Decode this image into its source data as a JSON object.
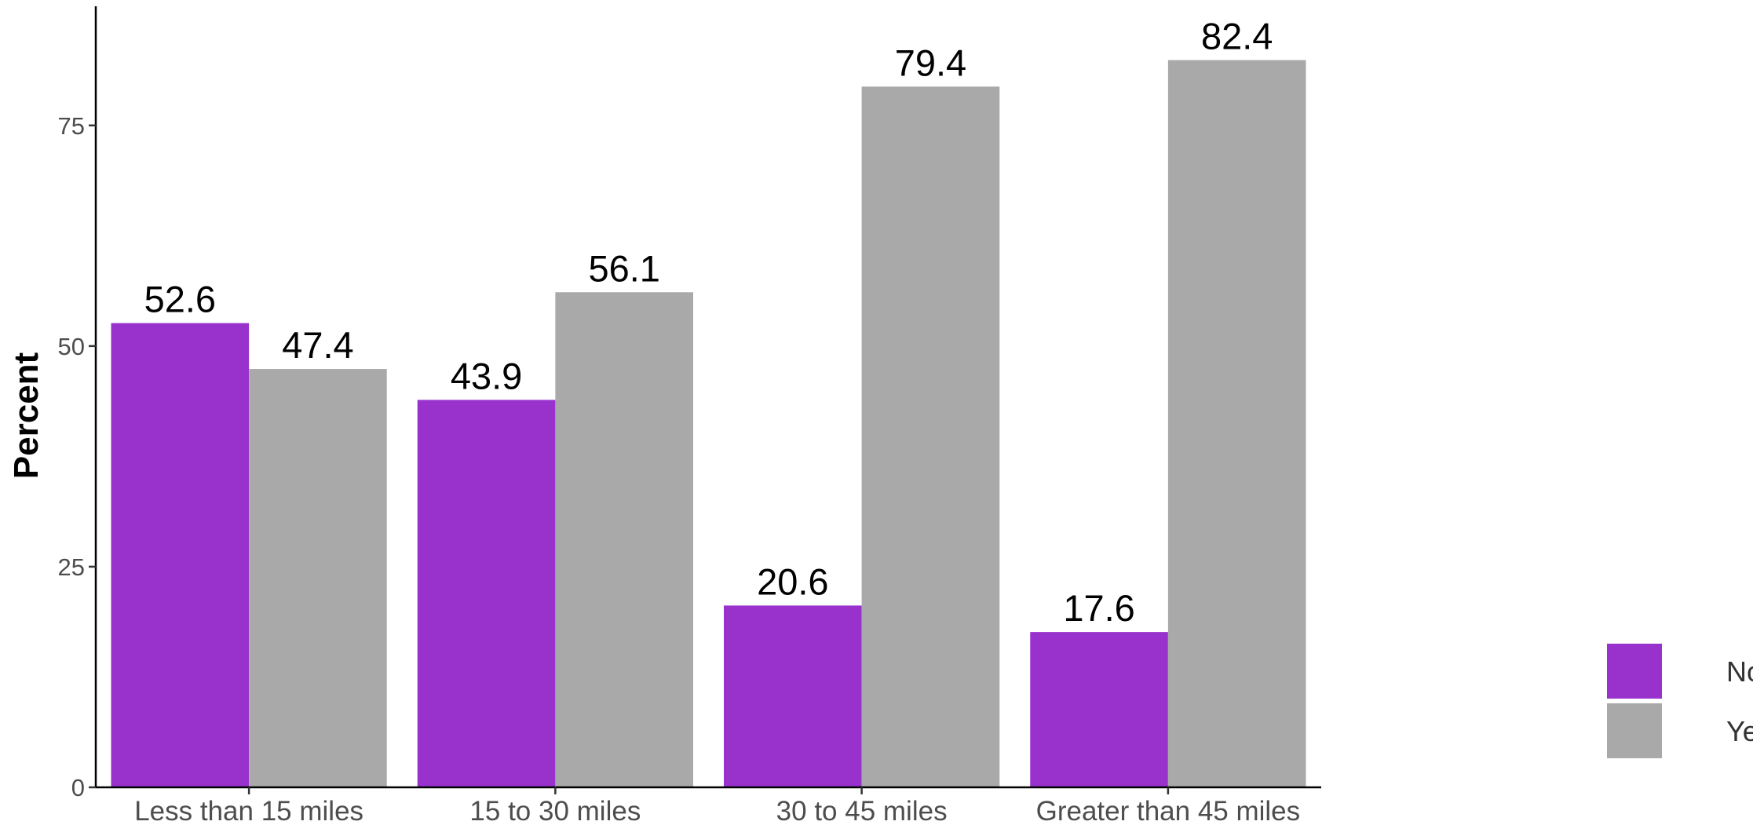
{
  "chart_data": {
    "type": "bar",
    "categories": [
      "Less than 15 miles",
      "15 to 30 miles",
      "30 to 45 miles",
      "Greater than 45 miles"
    ],
    "series": [
      {
        "name": "No",
        "values": [
          52.6,
          43.9,
          20.6,
          17.6
        ],
        "color": "#9932cc"
      },
      {
        "name": "Yes",
        "values": [
          47.4,
          56.1,
          79.4,
          82.4
        ],
        "color": "#a9a9a9"
      }
    ],
    "data_labels": [
      [
        "52.6",
        "43.9",
        "20.6",
        "17.6"
      ],
      [
        "47.4",
        "56.1",
        "79.4",
        "82.4"
      ]
    ],
    "ylabel": "Percent",
    "xlabel": "",
    "ylim": [
      0,
      88.5
    ],
    "yticks": [
      0,
      25,
      50,
      75
    ],
    "ytick_labels": [
      "0",
      "25",
      "50",
      "75"
    ],
    "grid": false,
    "legend": {
      "position": "right",
      "entries": [
        "No",
        "Yes"
      ]
    }
  }
}
